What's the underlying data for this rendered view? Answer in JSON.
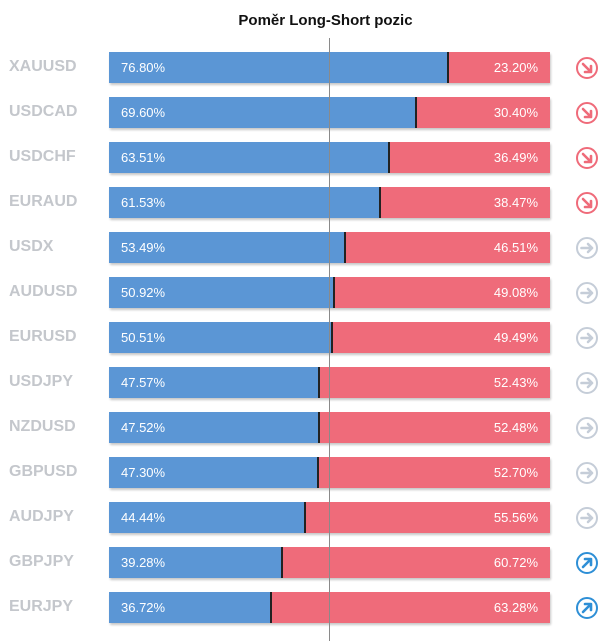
{
  "title": "Poměr Long-Short pozic",
  "colors": {
    "long": "#5b96d5",
    "short": "#ef6b7a",
    "signal_bearish": "#ef6b7a",
    "signal_neutral": "#c5cdd8",
    "signal_bullish": "#2e8fd6"
  },
  "chart_data": {
    "type": "bar",
    "stacked": true,
    "orientation": "horizontal",
    "title": "Poměr Long-Short pozic",
    "categories": [
      "XAUUSD",
      "USDCAD",
      "USDCHF",
      "EURAUD",
      "USDX",
      "AUDUSD",
      "EURUSD",
      "USDJPY",
      "NZDUSD",
      "GBPUSD",
      "AUDJPY",
      "GBPJPY",
      "EURJPY"
    ],
    "series": [
      {
        "values": [
          76.8,
          69.6,
          63.51,
          61.53,
          53.49,
          50.92,
          50.51,
          47.57,
          47.52,
          47.3,
          44.44,
          39.28,
          36.72
        ]
      },
      {
        "values": [
          23.2,
          30.4,
          36.49,
          38.47,
          46.51,
          49.08,
          49.49,
          52.43,
          52.48,
          52.7,
          55.56,
          60.72,
          63.28
        ]
      }
    ],
    "labels": {
      "long": [
        "76.80%",
        "69.60%",
        "63.51%",
        "61.53%",
        "53.49%",
        "50.92%",
        "50.51%",
        "47.57%",
        "47.52%",
        "47.30%",
        "44.44%",
        "39.28%",
        "36.72%"
      ],
      "short": [
        "23.20%",
        "30.40%",
        "36.49%",
        "38.47%",
        "46.51%",
        "49.08%",
        "49.49%",
        "52.43%",
        "52.48%",
        "52.70%",
        "55.56%",
        "60.72%",
        "63.28%"
      ]
    },
    "signals": [
      "down-right-arrow-icon",
      "down-right-arrow-icon",
      "down-right-arrow-icon",
      "down-right-arrow-icon",
      "right-arrow-icon",
      "right-arrow-icon",
      "right-arrow-icon",
      "right-arrow-icon",
      "right-arrow-icon",
      "right-arrow-icon",
      "right-arrow-icon",
      "up-right-arrow-icon",
      "up-right-arrow-icon"
    ],
    "xlim": [
      0,
      100
    ],
    "reference_line": 50,
    "grid": false,
    "legend": "none"
  }
}
